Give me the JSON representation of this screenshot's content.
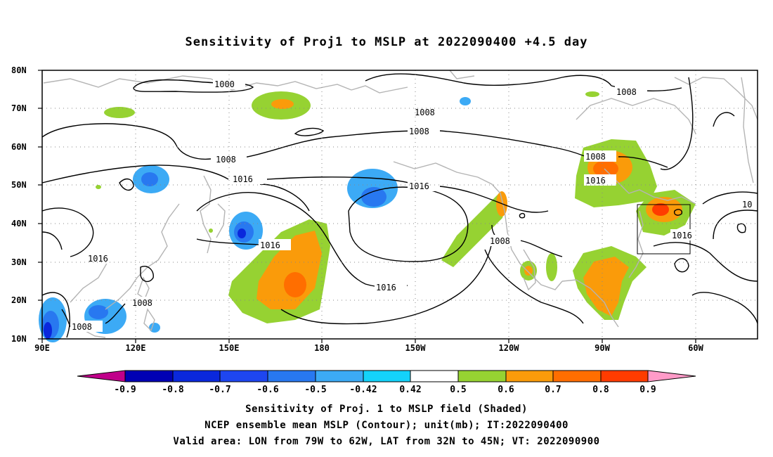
{
  "title": "Sensitivity of Proj1 to MSLP at 2022090400 +4.5 day",
  "map": {
    "lat_labels": [
      "80N",
      "70N",
      "60N",
      "50N",
      "40N",
      "30N",
      "20N",
      "10N"
    ],
    "lon_labels": [
      "90E",
      "120E",
      "150E",
      "180",
      "150W",
      "120W",
      "90W",
      "60W"
    ],
    "lon_range": [
      "90E",
      "45W"
    ],
    "lat_range": [
      "10N",
      "80N"
    ],
    "coastline_color": "#b4b4b4",
    "contour_color": "#000000",
    "contour_labels": {
      "c1000": "1000",
      "c1008a": "1008",
      "c1008b": "1008",
      "c1008c": "1008",
      "c1008d": "1008",
      "c1008e": "1008",
      "c1008f": "1008",
      "c1008g": "1008",
      "c1008h": "1008",
      "c1016a": "1016",
      "c1016b": "1016",
      "c1016c": "1016",
      "c1016d": "1016",
      "c1016e": "1016",
      "c1016f": "1016",
      "c1016g": "1016",
      "c10": "10"
    }
  },
  "colorbar": {
    "colors": [
      "#c0008a",
      "#0000b4",
      "#0a28dc",
      "#1e46f0",
      "#2878f0",
      "#3caaf5",
      "#14d2fa",
      "#ffffff",
      "#96d232",
      "#fa9b0a",
      "#ff6e00",
      "#ff3c00",
      "#ff0000",
      "#ff9bc8"
    ],
    "labels": [
      "-0.9",
      "-0.8",
      "-0.7",
      "-0.6",
      "-0.5",
      "-0.42",
      "0.42",
      "0.5",
      "0.6",
      "0.7",
      "0.8",
      "0.9"
    ]
  },
  "captions": {
    "line1": "Sensitivity of Proj. 1 to MSLP field (Shaded)",
    "line2": "NCEP ensemble mean MSLP (Contour); unit(mb); IT:2022090400",
    "line3": "Valid area: LON from 79W to 62W, LAT from 32N to 45N; VT: 2022090900"
  }
}
